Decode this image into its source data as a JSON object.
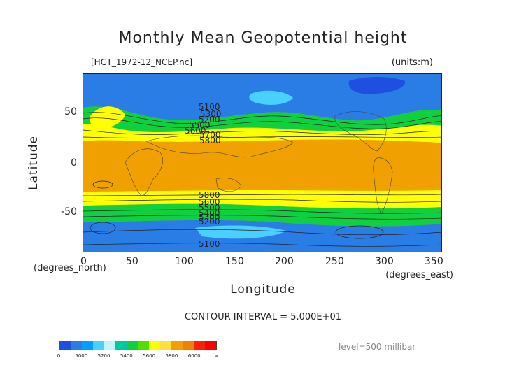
{
  "title": "Monthly Mean Geopotential height",
  "file_label": "[HGT_1972-12_NCEP.nc]",
  "units_label": "(units:m)",
  "x_axis_title": "Longitude",
  "y_axis_title": "Latitude",
  "x_unit": "(degrees_east)",
  "y_unit": "(degrees_north)",
  "x_ticks": [
    "0",
    "50",
    "100",
    "150",
    "200",
    "250",
    "300",
    "350"
  ],
  "y_ticks": [
    "50",
    "0",
    "-50"
  ],
  "contour_interval": "CONTOUR INTERVAL = 5.000E+01",
  "level": "level=500 millibar",
  "colorbar": {
    "labels": [
      "0",
      "5000",
      "5200",
      "5400",
      "5600",
      "5800",
      "6000",
      "∞"
    ],
    "colors": [
      "#1f4fe0",
      "#2b7de6",
      "#00a0ff",
      "#4ad0ff",
      "#bff6ff",
      "#00c8a0",
      "#10d040",
      "#50e000",
      "#ffff00",
      "#ffe040",
      "#f0a000",
      "#f08000",
      "#ff2000",
      "#ff0000"
    ]
  },
  "contour_labels": [
    "5100",
    "5300",
    "5200",
    "5500",
    "5600",
    "5700",
    "5800",
    "5800",
    "5600",
    "5500",
    "5400",
    "5300",
    "5200",
    "5100"
  ],
  "chart_data": {
    "type": "heatmap",
    "title": "Monthly Mean Geopotential height",
    "xlabel": "Longitude",
    "ylabel": "Latitude",
    "xlim": [
      0,
      360
    ],
    "ylim": [
      -90,
      90
    ],
    "units": "m",
    "variable": "HGT",
    "level": "500 millibar",
    "contour_interval": 50,
    "zonal_bands": [
      {
        "lat_range": [
          60,
          90
        ],
        "value_range": [
          5000,
          5200
        ],
        "color": "#2b7de6"
      },
      {
        "lat_range": [
          45,
          60
        ],
        "value_range": [
          5200,
          5500
        ],
        "color": "#10d040"
      },
      {
        "lat_range": [
          22,
          45
        ],
        "value_range": [
          5600,
          5800
        ],
        "color": "#ffff00"
      },
      {
        "lat_range": [
          -22,
          22
        ],
        "value_range": [
          5800,
          6000
        ],
        "color": "#f0a000"
      },
      {
        "lat_range": [
          -45,
          -22
        ],
        "value_range": [
          5600,
          5800
        ],
        "color": "#ffff00"
      },
      {
        "lat_range": [
          -60,
          -45
        ],
        "value_range": [
          5200,
          5500
        ],
        "color": "#10d040"
      },
      {
        "lat_range": [
          -90,
          -60
        ],
        "value_range": [
          5000,
          5200
        ],
        "color": "#2b7de6"
      }
    ],
    "low_center": {
      "lon": 285,
      "lat": 80,
      "value_range": [
        4800,
        5000
      ]
    }
  }
}
